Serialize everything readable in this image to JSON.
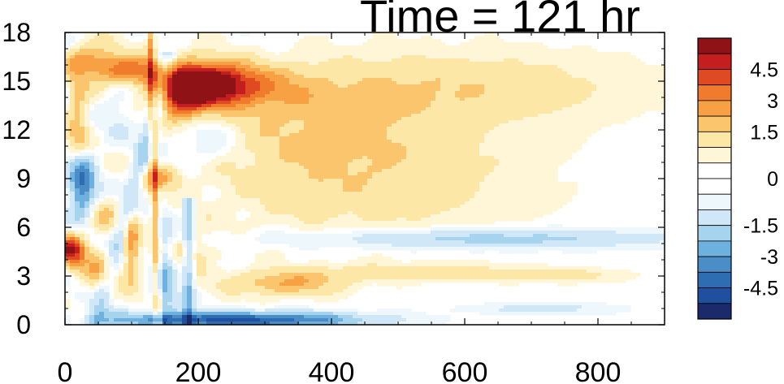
{
  "chart_data": {
    "type": "heatmap",
    "title": "Time = 121 hr",
    "xlabel": "",
    "ylabel": "",
    "xlim": [
      0,
      900
    ],
    "ylim": [
      0,
      18
    ],
    "x_ticks": [
      "0",
      "200",
      "400",
      "600",
      "800"
    ],
    "y_ticks": [
      "0",
      "3",
      "6",
      "9",
      "12",
      "15",
      "18"
    ],
    "x_tick_values": [
      0,
      200,
      400,
      600,
      800
    ],
    "y_tick_values": [
      0,
      3,
      6,
      9,
      12,
      15,
      18
    ],
    "colorbar": {
      "levels": [
        -5.25,
        -4.5,
        -3.75,
        -3.0,
        -2.25,
        -1.5,
        -0.75,
        -0.25,
        0,
        0.25,
        0.75,
        1.5,
        2.25,
        3.0,
        3.75,
        4.5,
        5.25
      ],
      "labels": [
        "4.5",
        "3",
        "1.5",
        "0",
        "-1.5",
        "-3",
        "-4.5"
      ],
      "label_values": [
        4.5,
        3,
        1.5,
        0,
        -1.5,
        -3,
        -4.5
      ],
      "colors": [
        "#1a2a6b",
        "#1f4f9e",
        "#2f6db3",
        "#4b8ec7",
        "#6fb1de",
        "#a6d3ee",
        "#cfe7f6",
        "#eef7fc",
        "#ffffff",
        "#ffffff",
        "#fff6d8",
        "#fde7a6",
        "#fbc56d",
        "#f7a044",
        "#f07b2c",
        "#e04a22",
        "#c41e20",
        "#8f1316"
      ]
    },
    "features": [
      {
        "x": 210,
        "y": 14.8,
        "sx": 45,
        "sy": 0.9,
        "v": 6.5
      },
      {
        "x": 175,
        "y": 14.0,
        "sx": 25,
        "sy": 1.3,
        "v": 3.5
      },
      {
        "x": 290,
        "y": 14.6,
        "sx": 60,
        "sy": 1.0,
        "v": 1.6
      },
      {
        "x": 95,
        "y": 15.6,
        "sx": 30,
        "sy": 0.6,
        "v": 3.5
      },
      {
        "x": 40,
        "y": 16.3,
        "sx": 30,
        "sy": 0.7,
        "v": 2.6
      },
      {
        "x": 20,
        "y": 12.6,
        "sx": 12,
        "sy": 2.2,
        "v": 2.0
      },
      {
        "x": 25,
        "y": 8.6,
        "sx": 14,
        "sy": 1.4,
        "v": -4.4
      },
      {
        "x": 10,
        "y": 4.6,
        "sx": 15,
        "sy": 0.7,
        "v": 5.0
      },
      {
        "x": 55,
        "y": 3.2,
        "sx": 20,
        "sy": 1.0,
        "v": 2.0
      },
      {
        "x": 100,
        "y": 4.8,
        "sx": 8,
        "sy": 1.6,
        "v": 2.6
      },
      {
        "x": 145,
        "y": 9.1,
        "sx": 20,
        "sy": 0.5,
        "v": 2.4
      },
      {
        "x": 180,
        "y": 4.6,
        "sx": 30,
        "sy": 0.8,
        "v": 1.4
      },
      {
        "x": 330,
        "y": 2.5,
        "sx": 60,
        "sy": 0.5,
        "v": 2.2
      },
      {
        "x": 520,
        "y": 3.2,
        "sx": 140,
        "sy": 0.35,
        "v": 1.3
      },
      {
        "x": 260,
        "y": 0.3,
        "sx": 130,
        "sy": 0.35,
        "v": -4.8
      },
      {
        "x": 620,
        "y": 5.3,
        "sx": 210,
        "sy": 0.45,
        "v": -2.0
      },
      {
        "x": 450,
        "y": 9.0,
        "sx": 170,
        "sy": 2.6,
        "v": 1.3
      },
      {
        "x": 560,
        "y": 14.6,
        "sx": 200,
        "sy": 1.6,
        "v": 1.4
      },
      {
        "x": 380,
        "y": 12.0,
        "sx": 110,
        "sy": 1.8,
        "v": 0.9
      },
      {
        "x": 200,
        "y": 11.5,
        "sx": 40,
        "sy": 1.2,
        "v": -1.4
      },
      {
        "x": 150,
        "y": 3.0,
        "sx": 12,
        "sy": 2.5,
        "v": -2.4
      },
      {
        "x": 80,
        "y": 13.5,
        "sx": 20,
        "sy": 1.5,
        "v": -0.9
      },
      {
        "x": 60,
        "y": 6.5,
        "sx": 20,
        "sy": 0.8,
        "v": 1.3
      },
      {
        "x": 720,
        "y": 1.0,
        "sx": 80,
        "sy": 0.25,
        "v": -1.0
      },
      {
        "x": 760,
        "y": 3.0,
        "sx": 60,
        "sy": 0.3,
        "v": 0.8
      }
    ],
    "ridges": [
      {
        "x0": 45,
        "y0": 0,
        "x1": 155,
        "y1": 16,
        "w": 10,
        "v": -1.8
      },
      {
        "x0": 128,
        "y0": 17.5,
        "x1": 140,
        "y1": 0,
        "w": 4,
        "v": 2.4
      },
      {
        "x0": 185,
        "y0": 7.5,
        "x1": 185,
        "y1": 0,
        "w": 6,
        "v": -2.4
      }
    ]
  }
}
